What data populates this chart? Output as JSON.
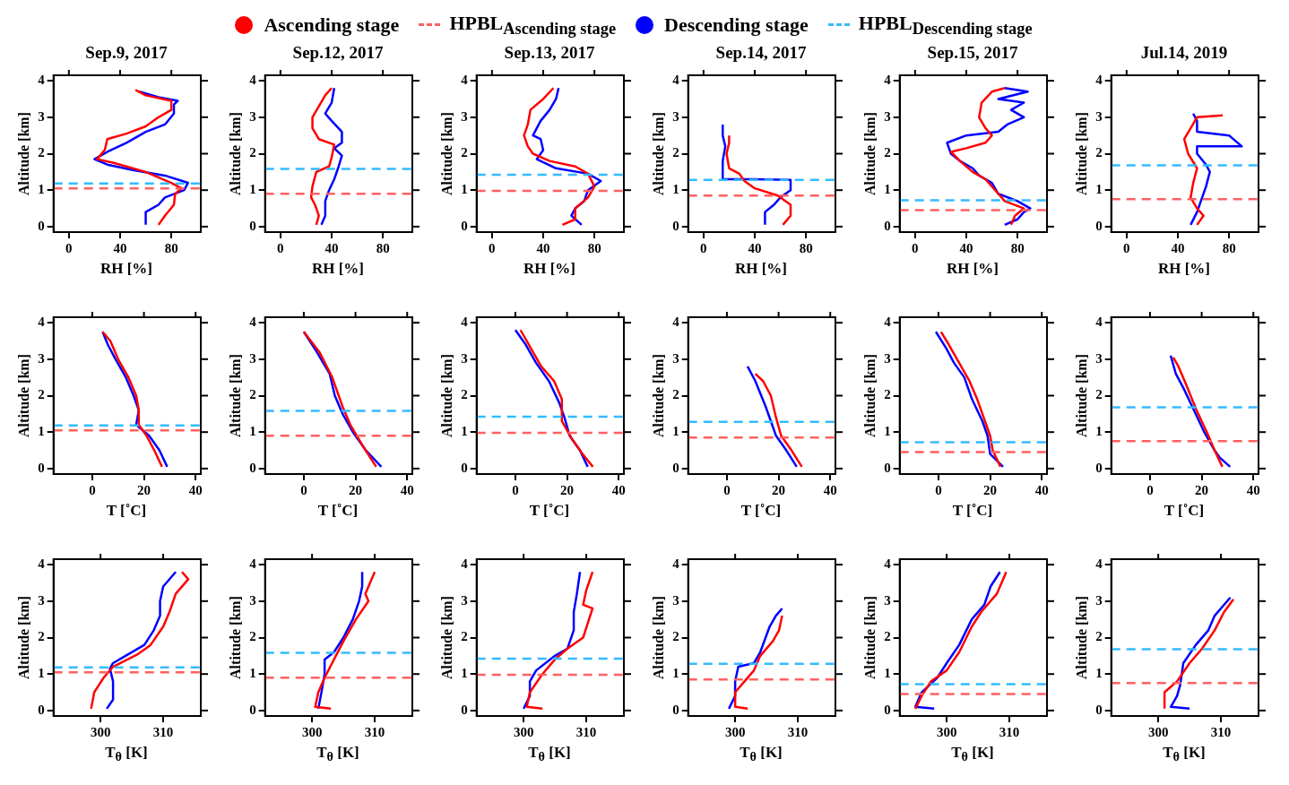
{
  "chart_data": [
    {
      "type": "line",
      "title": "Sep.9, 2017",
      "xlabel": "RH [%]",
      "ylabel": "Altitude [km]",
      "xlim": [
        -12,
        103
      ],
      "xticks": [
        0,
        40,
        80
      ],
      "ylim": [
        -0.15,
        4.15
      ],
      "yticks": [
        0,
        1,
        2,
        3,
        4
      ],
      "legend": "top",
      "marker": "none",
      "line_style": "solid",
      "series": [
        {
          "name": "Ascending stage",
          "color": "#ff0000",
          "x": [
            70,
            75,
            82,
            83,
            88,
            80,
            60,
            35,
            22,
            28,
            30,
            45,
            60,
            70,
            80,
            80,
            60,
            52
          ],
          "values": [
            0.05,
            0.3,
            0.6,
            0.9,
            1.05,
            1.2,
            1.5,
            1.75,
            1.85,
            2.1,
            2.4,
            2.55,
            2.75,
            3.0,
            3.2,
            3.45,
            3.6,
            3.75
          ]
        },
        {
          "name": "Descending stage",
          "color": "#0000ff",
          "x": [
            60,
            60,
            70,
            75,
            90,
            93,
            75,
            50,
            30,
            20,
            30,
            45,
            60,
            75,
            82,
            82,
            85,
            70,
            55
          ],
          "values": [
            0.05,
            0.4,
            0.6,
            0.8,
            1.0,
            1.2,
            1.4,
            1.55,
            1.7,
            1.85,
            2.05,
            2.3,
            2.6,
            2.8,
            3.1,
            3.35,
            3.45,
            3.55,
            3.7
          ]
        }
      ],
      "ref_lines": [
        {
          "axis": "y",
          "value": 1.05,
          "label": "HPBL$_{Ascending stage}$",
          "color": "#ff6060",
          "line_style": "dashed"
        },
        {
          "axis": "y",
          "value": 1.18,
          "label": "HPBL$_{Descending stage}$",
          "color": "#33bbff",
          "line_style": "dashed"
        }
      ]
    },
    {
      "type": "line",
      "title": "Sep.12, 2017",
      "xlabel": "RH [%]",
      "ylabel": "Altitude [km]",
      "xlim": [
        -12,
        103
      ],
      "xticks": [
        0,
        40,
        80
      ],
      "ylim": [
        -0.15,
        4.15
      ],
      "yticks": [
        0,
        1,
        2,
        3,
        4
      ],
      "marker": "none",
      "line_style": "solid",
      "series": [
        {
          "color": "#ff0000",
          "x": [
            28,
            30,
            27,
            24,
            25,
            28,
            38,
            40,
            42,
            30,
            25,
            25,
            30,
            35,
            40
          ],
          "values": [
            0.05,
            0.3,
            0.6,
            0.8,
            1.1,
            1.5,
            1.65,
            1.9,
            2.25,
            2.4,
            2.7,
            3.0,
            3.3,
            3.6,
            3.8
          ]
        },
        {
          "color": "#0000ff",
          "x": [
            32,
            35,
            35,
            38,
            42,
            45,
            48,
            42,
            48,
            48,
            40,
            35,
            40,
            42
          ],
          "values": [
            0.05,
            0.3,
            0.7,
            1.0,
            1.3,
            1.6,
            1.95,
            2.15,
            2.3,
            2.6,
            2.9,
            3.1,
            3.4,
            3.8
          ]
        }
      ],
      "ref_lines": [
        {
          "axis": "y",
          "value": 0.9,
          "color": "#ff6060",
          "line_style": "dashed"
        },
        {
          "axis": "y",
          "value": 1.58,
          "color": "#33bbff",
          "line_style": "dashed"
        }
      ]
    },
    {
      "type": "line",
      "title": "Sep.13, 2017",
      "xlabel": "RH [%]",
      "ylabel": "Altitude [km]",
      "xlim": [
        -12,
        103
      ],
      "xticks": [
        0,
        40,
        80
      ],
      "ylim": [
        -0.15,
        4.15
      ],
      "yticks": [
        0,
        1,
        2,
        3,
        4
      ],
      "marker": "none",
      "line_style": "solid",
      "series": [
        {
          "color": "#ff0000",
          "x": [
            55,
            65,
            65,
            75,
            80,
            75,
            65,
            45,
            32,
            28,
            25,
            28,
            30,
            40,
            48
          ],
          "values": [
            0.05,
            0.2,
            0.5,
            0.8,
            1.1,
            1.45,
            1.65,
            1.8,
            2.0,
            2.2,
            2.5,
            2.8,
            3.2,
            3.5,
            3.8
          ]
        },
        {
          "color": "#0000ff",
          "x": [
            70,
            62,
            65,
            72,
            75,
            85,
            75,
            50,
            35,
            40,
            38,
            32,
            38,
            45,
            50,
            52
          ],
          "values": [
            0.05,
            0.3,
            0.5,
            0.7,
            1.0,
            1.25,
            1.45,
            1.6,
            1.85,
            2.1,
            2.4,
            2.5,
            2.9,
            3.2,
            3.5,
            3.8
          ]
        }
      ],
      "ref_lines": [
        {
          "axis": "y",
          "value": 0.98,
          "color": "#ff6060",
          "line_style": "dashed"
        },
        {
          "axis": "y",
          "value": 1.42,
          "color": "#33bbff",
          "line_style": "dashed"
        }
      ]
    },
    {
      "type": "line",
      "title": "Sep.14, 2017",
      "xlabel": "RH [%]",
      "ylabel": "Altitude [km]",
      "xlim": [
        -12,
        103
      ],
      "xticks": [
        0,
        40,
        80
      ],
      "ylim": [
        -0.15,
        4.15
      ],
      "yticks": [
        0,
        1,
        2,
        3,
        4
      ],
      "marker": "none",
      "line_style": "solid",
      "series": [
        {
          "color": "#ff0000",
          "x": [
            62,
            68,
            68,
            58,
            40,
            32,
            28,
            20,
            18,
            20,
            20
          ],
          "values": [
            0.05,
            0.3,
            0.6,
            0.85,
            1.05,
            1.25,
            1.45,
            1.6,
            2.0,
            2.3,
            2.5
          ]
        },
        {
          "color": "#0000ff",
          "x": [
            48,
            48,
            55,
            60,
            68,
            68,
            40,
            15,
            15,
            17,
            15,
            15
          ],
          "values": [
            0.05,
            0.4,
            0.6,
            0.8,
            1.0,
            1.28,
            1.3,
            1.3,
            1.8,
            2.2,
            2.5,
            2.8
          ]
        }
      ],
      "ref_lines": [
        {
          "axis": "y",
          "value": 0.85,
          "color": "#ff6060",
          "line_style": "dashed"
        },
        {
          "axis": "y",
          "value": 1.28,
          "color": "#33bbff",
          "line_style": "dashed"
        }
      ]
    },
    {
      "type": "line",
      "title": "Sep.15, 2017",
      "xlabel": "RH [%]",
      "ylabel": "Altitude [km]",
      "xlim": [
        -12,
        103
      ],
      "xticks": [
        0,
        40,
        80
      ],
      "ylim": [
        -0.15,
        4.15
      ],
      "yticks": [
        0,
        1,
        2,
        3,
        4
      ],
      "marker": "none",
      "line_style": "solid",
      "series": [
        {
          "color": "#ff0000",
          "x": [
            75,
            78,
            85,
            70,
            65,
            55,
            45,
            35,
            28,
            40,
            55,
            60,
            55,
            50,
            52,
            60,
            70
          ],
          "values": [
            0.05,
            0.3,
            0.5,
            0.7,
            0.9,
            1.3,
            1.5,
            1.8,
            2.05,
            2.15,
            2.3,
            2.5,
            2.7,
            3.0,
            3.4,
            3.7,
            3.8
          ]
        },
        {
          "color": "#0000ff",
          "x": [
            70,
            80,
            85,
            90,
            80,
            65,
            60,
            50,
            45,
            35,
            28,
            25,
            40,
            65,
            72,
            85,
            75,
            85,
            65,
            88,
            70
          ],
          "values": [
            0.05,
            0.2,
            0.4,
            0.5,
            0.7,
            0.9,
            1.2,
            1.4,
            1.6,
            1.8,
            2.0,
            2.3,
            2.5,
            2.6,
            2.8,
            3.0,
            3.2,
            3.4,
            3.5,
            3.7,
            3.8
          ]
        }
      ],
      "ref_lines": [
        {
          "axis": "y",
          "value": 0.45,
          "color": "#ff6060",
          "line_style": "dashed"
        },
        {
          "axis": "y",
          "value": 0.72,
          "color": "#33bbff",
          "line_style": "dashed"
        }
      ]
    },
    {
      "type": "line",
      "title": "Jul.14, 2019",
      "xlabel": "RH [%]",
      "ylabel": "Altitude [km]",
      "xlim": [
        -12,
        103
      ],
      "xticks": [
        0,
        40,
        80
      ],
      "ylim": [
        -0.15,
        4.15
      ],
      "yticks": [
        0,
        1,
        2,
        3,
        4
      ],
      "marker": "none",
      "line_style": "solid",
      "series": [
        {
          "color": "#ff0000",
          "x": [
            55,
            60,
            55,
            50,
            52,
            55,
            48,
            45,
            50,
            55,
            75
          ],
          "values": [
            0.05,
            0.3,
            0.5,
            0.8,
            1.2,
            1.6,
            2.0,
            2.4,
            2.7,
            3.0,
            3.05
          ]
        },
        {
          "color": "#0000ff",
          "x": [
            50,
            55,
            58,
            62,
            65,
            62,
            55,
            55,
            90,
            80,
            55,
            55,
            52
          ],
          "values": [
            0.05,
            0.4,
            0.7,
            1.1,
            1.5,
            1.7,
            2.0,
            2.2,
            2.2,
            2.5,
            2.6,
            2.9,
            3.1
          ]
        }
      ],
      "ref_lines": [
        {
          "axis": "y",
          "value": 0.75,
          "color": "#ff6060",
          "line_style": "dashed"
        },
        {
          "axis": "y",
          "value": 1.68,
          "color": "#33bbff",
          "line_style": "dashed"
        }
      ]
    },
    {
      "type": "line",
      "xlabel": "T [˚C]",
      "ylabel": "Altitude [km]",
      "xlim": [
        -15,
        42
      ],
      "xticks": [
        0,
        20,
        40
      ],
      "ylim": [
        -0.15,
        4.15
      ],
      "yticks": [
        0,
        1,
        2,
        3,
        4
      ],
      "marker": "none",
      "line_style": "solid",
      "series": [
        {
          "color": "#ff0000",
          "x": [
            27,
            24,
            21,
            18,
            18,
            17,
            14,
            10,
            7,
            4
          ],
          "values": [
            0.05,
            0.5,
            0.9,
            1.2,
            1.6,
            2.0,
            2.5,
            3.0,
            3.5,
            3.75
          ]
        },
        {
          "color": "#0000ff",
          "x": [
            29,
            26,
            22,
            17,
            18,
            16,
            13,
            9,
            6,
            4
          ],
          "values": [
            0.05,
            0.5,
            0.9,
            1.2,
            1.6,
            2.0,
            2.5,
            3.0,
            3.4,
            3.75
          ]
        }
      ],
      "ref_lines": [
        {
          "axis": "y",
          "value": 1.05,
          "color": "#ff6060",
          "line_style": "dashed"
        },
        {
          "axis": "y",
          "value": 1.18,
          "color": "#33bbff",
          "line_style": "dashed"
        }
      ]
    },
    {
      "type": "line",
      "xlabel": "T [˚C]",
      "ylabel": "Altitude [km]",
      "xlim": [
        -15,
        42
      ],
      "xticks": [
        0,
        20,
        40
      ],
      "ylim": [
        -0.15,
        4.15
      ],
      "yticks": [
        0,
        1,
        2,
        3,
        4
      ],
      "marker": "none",
      "line_style": "solid",
      "series": [
        {
          "color": "#ff0000",
          "x": [
            28,
            23,
            18,
            15,
            11,
            6,
            0
          ],
          "values": [
            0.05,
            0.6,
            1.2,
            1.7,
            2.5,
            3.2,
            3.75
          ]
        },
        {
          "color": "#0000ff",
          "x": [
            30,
            24,
            19,
            15,
            12,
            10,
            5,
            0
          ],
          "values": [
            0.05,
            0.5,
            1.0,
            1.5,
            2.0,
            2.6,
            3.2,
            3.75
          ]
        }
      ],
      "ref_lines": [
        {
          "axis": "y",
          "value": 0.9,
          "color": "#ff6060",
          "line_style": "dashed"
        },
        {
          "axis": "y",
          "value": 1.58,
          "color": "#33bbff",
          "line_style": "dashed"
        }
      ]
    },
    {
      "type": "line",
      "xlabel": "T [˚C]",
      "ylabel": "Altitude [km]",
      "xlim": [
        -15,
        42
      ],
      "xticks": [
        0,
        20,
        40
      ],
      "ylim": [
        -0.15,
        4.15
      ],
      "yticks": [
        0,
        1,
        2,
        3,
        4
      ],
      "marker": "none",
      "line_style": "solid",
      "series": [
        {
          "color": "#ff0000",
          "x": [
            30,
            26,
            22,
            18,
            18,
            15,
            10,
            6,
            2
          ],
          "values": [
            0.05,
            0.4,
            0.8,
            1.3,
            1.9,
            2.4,
            2.8,
            3.3,
            3.8
          ]
        },
        {
          "color": "#0000ff",
          "x": [
            28,
            25,
            21,
            19,
            17,
            13,
            8,
            4,
            0
          ],
          "values": [
            0.05,
            0.5,
            0.9,
            1.4,
            1.8,
            2.4,
            2.9,
            3.4,
            3.8
          ]
        }
      ],
      "ref_lines": [
        {
          "axis": "y",
          "value": 0.98,
          "color": "#ff6060",
          "line_style": "dashed"
        },
        {
          "axis": "y",
          "value": 1.42,
          "color": "#33bbff",
          "line_style": "dashed"
        }
      ]
    },
    {
      "type": "line",
      "xlabel": "T [˚C]",
      "ylabel": "Altitude [km]",
      "xlim": [
        -15,
        42
      ],
      "xticks": [
        0,
        20,
        40
      ],
      "ylim": [
        -0.15,
        4.15
      ],
      "yticks": [
        0,
        1,
        2,
        3,
        4
      ],
      "marker": "none",
      "line_style": "solid",
      "series": [
        {
          "color": "#ff0000",
          "x": [
            29,
            25,
            21,
            19,
            17,
            14,
            11
          ],
          "values": [
            0.05,
            0.5,
            0.9,
            1.4,
            2.0,
            2.4,
            2.6
          ]
        },
        {
          "color": "#0000ff",
          "x": [
            27,
            23,
            19,
            17,
            15,
            11,
            8
          ],
          "values": [
            0.05,
            0.5,
            0.9,
            1.3,
            1.7,
            2.4,
            2.8
          ]
        }
      ],
      "ref_lines": [
        {
          "axis": "y",
          "value": 0.85,
          "color": "#ff6060",
          "line_style": "dashed"
        },
        {
          "axis": "y",
          "value": 1.28,
          "color": "#33bbff",
          "line_style": "dashed"
        }
      ]
    },
    {
      "type": "line",
      "xlabel": "T [˚C]",
      "ylabel": "Altitude [km]",
      "xlim": [
        -15,
        42
      ],
      "xticks": [
        0,
        20,
        40
      ],
      "ylim": [
        -0.15,
        4.15
      ],
      "yticks": [
        0,
        1,
        2,
        3,
        4
      ],
      "marker": "none",
      "line_style": "solid",
      "series": [
        {
          "color": "#ff0000",
          "x": [
            24,
            21,
            20,
            18,
            15,
            12,
            8,
            4,
            1
          ],
          "values": [
            0.05,
            0.5,
            0.9,
            1.3,
            1.9,
            2.4,
            2.9,
            3.4,
            3.75
          ]
        },
        {
          "color": "#0000ff",
          "x": [
            25,
            20,
            19,
            17,
            13,
            10,
            6,
            3,
            -1
          ],
          "values": [
            0.05,
            0.4,
            0.9,
            1.3,
            1.9,
            2.5,
            2.9,
            3.3,
            3.75
          ]
        }
      ],
      "ref_lines": [
        {
          "axis": "y",
          "value": 0.45,
          "color": "#ff6060",
          "line_style": "dashed"
        },
        {
          "axis": "y",
          "value": 0.72,
          "color": "#33bbff",
          "line_style": "dashed"
        }
      ]
    },
    {
      "type": "line",
      "xlabel": "T [˚C]",
      "ylabel": "Altitude [km]",
      "xlim": [
        -15,
        42
      ],
      "xticks": [
        0,
        20,
        40
      ],
      "ylim": [
        -0.15,
        4.15
      ],
      "yticks": [
        0,
        1,
        2,
        3,
        4
      ],
      "marker": "none",
      "line_style": "solid",
      "series": [
        {
          "color": "#ff0000",
          "x": [
            28,
            25,
            22,
            18,
            14,
            11,
            9
          ],
          "values": [
            0.05,
            0.5,
            1.0,
            1.6,
            2.3,
            2.8,
            3.05
          ]
        },
        {
          "color": "#0000ff",
          "x": [
            31,
            27,
            25,
            21,
            17,
            13,
            10,
            8
          ],
          "values": [
            0.05,
            0.3,
            0.5,
            1.0,
            1.6,
            2.2,
            2.6,
            3.1
          ]
        }
      ],
      "ref_lines": [
        {
          "axis": "y",
          "value": 0.75,
          "color": "#ff6060",
          "line_style": "dashed"
        },
        {
          "axis": "y",
          "value": 1.68,
          "color": "#33bbff",
          "line_style": "dashed"
        }
      ]
    },
    {
      "type": "line",
      "xlabel": "T$_{θ}$ [K]",
      "ylabel": "Altitude [km]",
      "xlim": [
        292.5,
        316
      ],
      "xticks": [
        300,
        310
      ],
      "ylim": [
        -0.15,
        4.15
      ],
      "yticks": [
        0,
        1,
        2,
        3,
        4
      ],
      "marker": "none",
      "line_style": "solid",
      "series": [
        {
          "color": "#ff0000",
          "x": [
            298.5,
            299,
            300.5,
            302,
            306,
            308,
            310,
            311,
            312,
            314,
            313
          ],
          "values": [
            0.05,
            0.5,
            0.9,
            1.2,
            1.55,
            1.8,
            2.3,
            2.7,
            3.2,
            3.6,
            3.8
          ]
        },
        {
          "color": "#0000ff",
          "x": [
            301,
            302,
            302,
            301.5,
            302,
            304,
            307,
            308.5,
            309.5,
            309.5,
            310,
            312
          ],
          "values": [
            0.05,
            0.3,
            0.8,
            1.15,
            1.3,
            1.5,
            1.8,
            2.2,
            2.6,
            3.0,
            3.4,
            3.8
          ]
        }
      ],
      "ref_lines": [
        {
          "axis": "y",
          "value": 1.05,
          "color": "#ff6060",
          "line_style": "dashed"
        },
        {
          "axis": "y",
          "value": 1.18,
          "color": "#33bbff",
          "line_style": "dashed"
        }
      ]
    },
    {
      "type": "line",
      "xlabel": "T$_{θ}$ [K]",
      "ylabel": "Altitude [km]",
      "xlim": [
        292.5,
        316
      ],
      "xticks": [
        300,
        310
      ],
      "ylim": [
        -0.15,
        4.15
      ],
      "yticks": [
        0,
        1,
        2,
        3,
        4
      ],
      "marker": "none",
      "line_style": "solid",
      "series": [
        {
          "color": "#ff0000",
          "x": [
            303,
            300.5,
            301,
            302,
            303.5,
            305,
            307,
            309,
            308.5,
            310
          ],
          "values": [
            0.05,
            0.1,
            0.5,
            0.9,
            1.4,
            1.9,
            2.5,
            3.0,
            3.2,
            3.8
          ]
        },
        {
          "color": "#0000ff",
          "x": [
            301,
            301.5,
            302,
            302,
            303.5,
            305,
            306.5,
            307.5,
            308,
            308
          ],
          "values": [
            0.05,
            0.5,
            1.0,
            1.4,
            1.6,
            2.0,
            2.5,
            3.0,
            3.4,
            3.8
          ]
        }
      ],
      "ref_lines": [
        {
          "axis": "y",
          "value": 0.9,
          "color": "#ff6060",
          "line_style": "dashed"
        },
        {
          "axis": "y",
          "value": 1.58,
          "color": "#33bbff",
          "line_style": "dashed"
        }
      ]
    },
    {
      "type": "line",
      "xlabel": "T$_{θ}$ [K]",
      "ylabel": "Altitude [km]",
      "xlim": [
        292.5,
        316
      ],
      "xticks": [
        300,
        310
      ],
      "ylim": [
        -0.15,
        4.15
      ],
      "yticks": [
        0,
        1,
        2,
        3,
        4
      ],
      "marker": "none",
      "line_style": "solid",
      "series": [
        {
          "color": "#ff0000",
          "x": [
            303,
            300.5,
            301,
            303,
            305,
            307,
            309.5,
            311,
            309.5,
            310,
            311
          ],
          "values": [
            0.05,
            0.1,
            0.5,
            1.0,
            1.4,
            1.7,
            2.0,
            2.8,
            2.9,
            3.3,
            3.8
          ]
        },
        {
          "color": "#0000ff",
          "x": [
            300,
            301,
            301,
            302,
            305,
            307,
            308,
            308,
            308.5,
            309
          ],
          "values": [
            0.05,
            0.4,
            0.8,
            1.1,
            1.5,
            1.7,
            2.2,
            2.7,
            3.2,
            3.8
          ]
        }
      ],
      "ref_lines": [
        {
          "axis": "y",
          "value": 0.98,
          "color": "#ff6060",
          "line_style": "dashed"
        },
        {
          "axis": "y",
          "value": 1.42,
          "color": "#33bbff",
          "line_style": "dashed"
        }
      ]
    },
    {
      "type": "line",
      "xlabel": "T$_{θ}$ [K]",
      "ylabel": "Altitude [km]",
      "xlim": [
        292.5,
        316
      ],
      "xticks": [
        300,
        310
      ],
      "ylim": [
        -0.15,
        4.15
      ],
      "yticks": [
        0,
        1,
        2,
        3,
        4
      ],
      "marker": "none",
      "line_style": "solid",
      "series": [
        {
          "color": "#ff0000",
          "x": [
            302,
            300,
            300,
            301.5,
            303,
            304,
            306,
            307,
            307.5
          ],
          "values": [
            0.05,
            0.1,
            0.5,
            0.8,
            1.1,
            1.5,
            1.9,
            2.2,
            2.6
          ]
        },
        {
          "color": "#0000ff",
          "x": [
            299,
            300,
            300,
            300.5,
            303,
            304,
            305.5,
            306.5,
            307.5
          ],
          "values": [
            0.05,
            0.4,
            0.8,
            1.2,
            1.3,
            1.6,
            2.3,
            2.6,
            2.8
          ]
        }
      ],
      "ref_lines": [
        {
          "axis": "y",
          "value": 0.85,
          "color": "#ff6060",
          "line_style": "dashed"
        },
        {
          "axis": "y",
          "value": 1.28,
          "color": "#33bbff",
          "line_style": "dashed"
        }
      ]
    },
    {
      "type": "line",
      "xlabel": "T$_{θ}$ [K]",
      "ylabel": "Altitude [km]",
      "xlim": [
        292.5,
        316
      ],
      "xticks": [
        300,
        310
      ],
      "ylim": [
        -0.15,
        4.15
      ],
      "yticks": [
        0,
        1,
        2,
        3,
        4
      ],
      "marker": "none",
      "line_style": "solid",
      "series": [
        {
          "color": "#ff0000",
          "x": [
            295,
            296,
            297.5,
            300,
            302,
            304,
            305.5,
            308,
            309.5
          ],
          "values": [
            0.05,
            0.4,
            0.8,
            1.1,
            1.6,
            2.3,
            2.7,
            3.2,
            3.8
          ]
        },
        {
          "color": "#0000ff",
          "x": [
            298,
            295,
            296,
            298.5,
            300,
            302,
            304,
            306,
            307,
            308.5
          ],
          "values": [
            0.05,
            0.1,
            0.5,
            0.9,
            1.3,
            1.8,
            2.5,
            2.9,
            3.4,
            3.8
          ]
        }
      ],
      "ref_lines": [
        {
          "axis": "y",
          "value": 0.45,
          "color": "#ff6060",
          "line_style": "dashed"
        },
        {
          "axis": "y",
          "value": 0.72,
          "color": "#33bbff",
          "line_style": "dashed"
        }
      ]
    },
    {
      "type": "line",
      "xlabel": "T$_{θ}$ [K]",
      "ylabel": "Altitude [km]",
      "xlim": [
        292.5,
        316
      ],
      "xticks": [
        300,
        310
      ],
      "ylim": [
        -0.15,
        4.15
      ],
      "yticks": [
        0,
        1,
        2,
        3,
        4
      ],
      "marker": "none",
      "line_style": "solid",
      "series": [
        {
          "color": "#ff0000",
          "x": [
            301,
            301,
            303,
            305,
            307,
            309,
            310.5,
            312
          ],
          "values": [
            0.05,
            0.5,
            0.8,
            1.3,
            1.7,
            2.2,
            2.7,
            3.05
          ]
        },
        {
          "color": "#0000ff",
          "x": [
            305,
            302,
            303,
            303.5,
            304,
            306,
            308,
            309,
            311.5
          ],
          "values": [
            0.05,
            0.1,
            0.4,
            0.7,
            1.3,
            1.8,
            2.2,
            2.6,
            3.1
          ]
        }
      ],
      "ref_lines": [
        {
          "axis": "y",
          "value": 0.75,
          "color": "#ff6060",
          "line_style": "dashed"
        },
        {
          "axis": "y",
          "value": 1.68,
          "color": "#33bbff",
          "line_style": "dashed"
        }
      ]
    }
  ]
}
